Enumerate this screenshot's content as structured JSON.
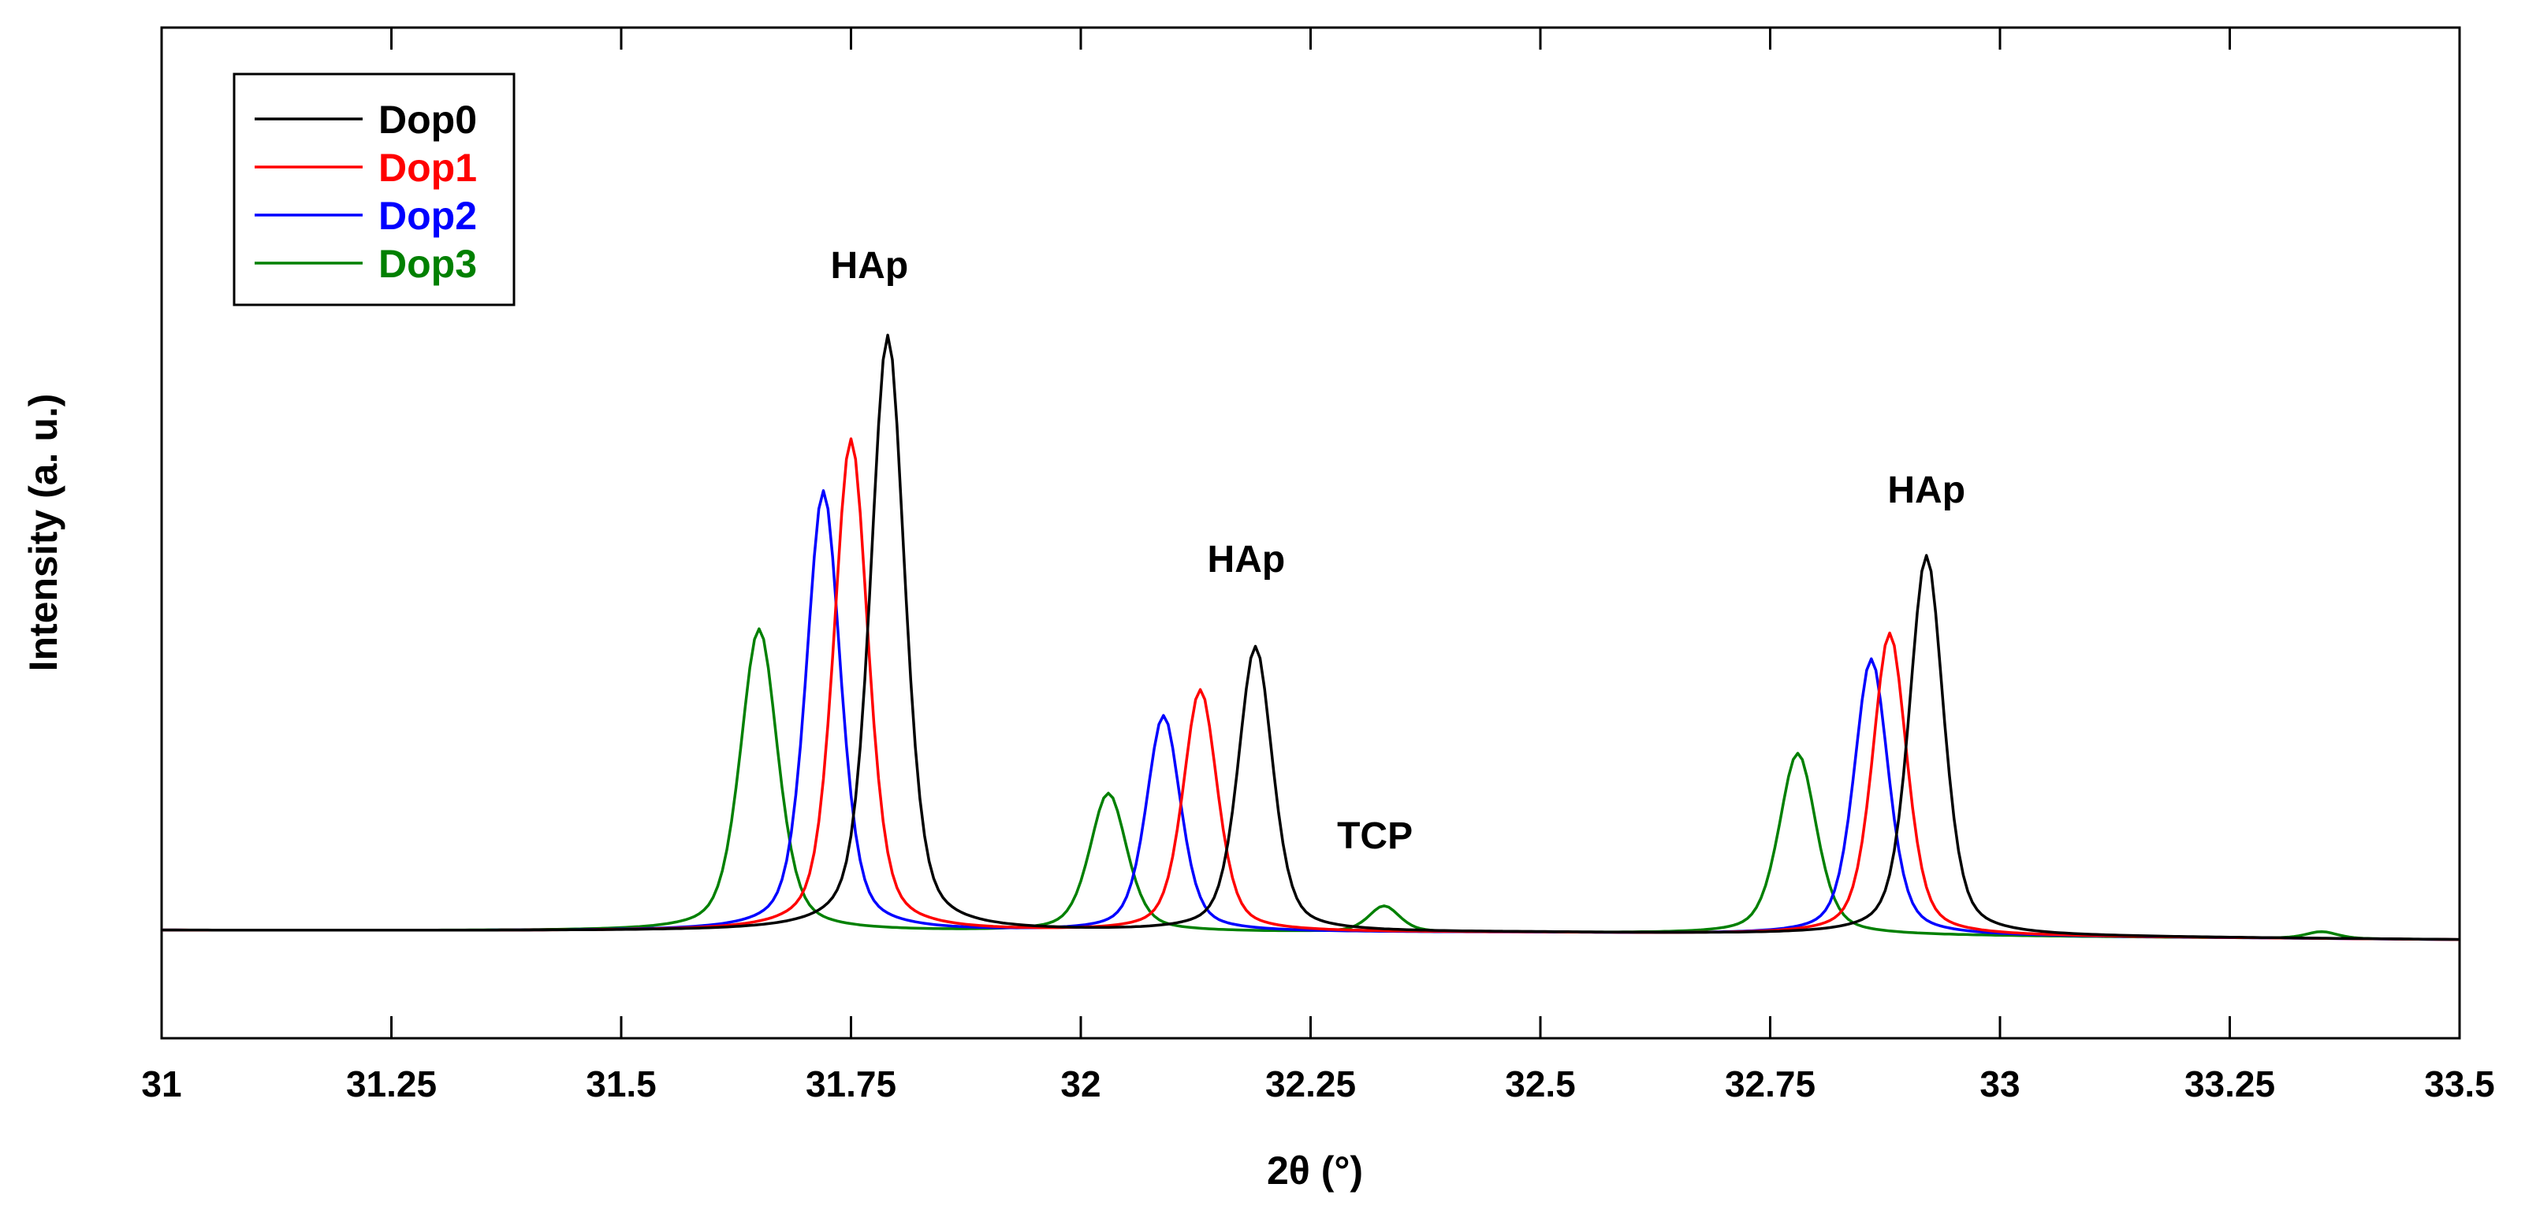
{
  "chart_data": {
    "type": "line",
    "title": "",
    "xlabel": "2θ (°)",
    "ylabel": "Intensity (a. u.)",
    "xlim": [
      31,
      33.5
    ],
    "ylim": [
      -12,
      105
    ],
    "x_ticks": [
      31,
      31.25,
      31.5,
      31.75,
      32,
      32.25,
      32.5,
      32.75,
      33,
      33.25,
      33.5
    ],
    "x_tick_labels": [
      "31",
      "31.25",
      "31.5",
      "31.75",
      "32",
      "32.25",
      "32.5",
      "32.75",
      "33",
      "33.25",
      "33.5"
    ],
    "y_ticks_shown": false,
    "grid": false,
    "legend_position": "top-left",
    "series": [
      {
        "name": "Dop0",
        "color": "#000000",
        "peaks": [
          {
            "center": 31.79,
            "height": 69,
            "width": 0.022
          },
          {
            "center": 32.19,
            "height": 33,
            "width": 0.022
          },
          {
            "center": 32.92,
            "height": 44,
            "width": 0.022
          }
        ],
        "baseline": [
          [
            31,
            0.5
          ],
          [
            32.5,
            0.2
          ],
          [
            33.5,
            -0.6
          ]
        ]
      },
      {
        "name": "Dop1",
        "color": "#ff0000",
        "peaks": [
          {
            "center": 31.75,
            "height": 57,
            "width": 0.022
          },
          {
            "center": 32.13,
            "height": 28,
            "width": 0.022
          },
          {
            "center": 32.88,
            "height": 35,
            "width": 0.022
          }
        ],
        "baseline": [
          [
            31,
            0.5
          ],
          [
            32.5,
            0.2
          ],
          [
            33.5,
            -0.6
          ]
        ]
      },
      {
        "name": "Dop2",
        "color": "#0000ff",
        "peaks": [
          {
            "center": 31.72,
            "height": 51,
            "width": 0.022
          },
          {
            "center": 32.09,
            "height": 25,
            "width": 0.022
          },
          {
            "center": 32.86,
            "height": 32,
            "width": 0.022
          }
        ],
        "baseline": [
          [
            31,
            0.5
          ],
          [
            32.5,
            0.2
          ],
          [
            33.5,
            -0.6
          ]
        ]
      },
      {
        "name": "Dop3",
        "color": "#008000",
        "peaks": [
          {
            "center": 31.65,
            "height": 35,
            "width": 0.024
          },
          {
            "center": 32.03,
            "height": 16,
            "width": 0.024
          },
          {
            "center": 32.33,
            "height": 3,
            "width": 0.02
          },
          {
            "center": 32.78,
            "height": 21,
            "width": 0.024
          },
          {
            "center": 33.35,
            "height": 0.8,
            "width": 0.02
          }
        ],
        "baseline": [
          [
            31,
            0.5
          ],
          [
            32.5,
            0.2
          ],
          [
            33.5,
            -0.6
          ]
        ]
      }
    ],
    "annotations": [
      {
        "text": "HAp",
        "x": 31.77,
        "y": 76
      },
      {
        "text": "HAp",
        "x": 32.18,
        "y": 42
      },
      {
        "text": "HAp",
        "x": 32.92,
        "y": 50
      },
      {
        "text": "TCP",
        "x": 32.32,
        "y": 10
      }
    ]
  }
}
